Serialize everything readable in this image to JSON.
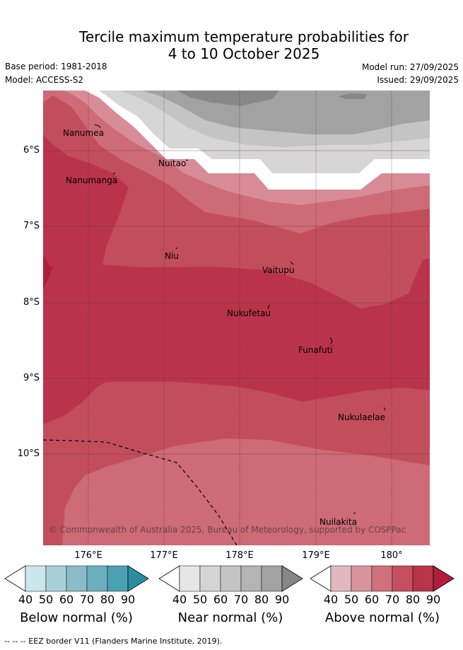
{
  "title_line1": "Tercile maximum temperature probabilities for",
  "title_line2": "4 to 10 October 2025",
  "meta": {
    "base_period": "Base period: 1981-2018",
    "model": "Model: ACCESS-S2",
    "model_run": "Model run: 27/09/2025",
    "issued": "Issued: 29/09/2025"
  },
  "lat_labels": [
    "6°S",
    "7°S",
    "8°S",
    "9°S",
    "10°S"
  ],
  "lon_labels": [
    "176°E",
    "177°E",
    "178°E",
    "179°E",
    "180°"
  ],
  "places": [
    "Nanumea",
    "Nanumanga",
    "Nuitao",
    "Niu",
    "Vaitupu",
    "Nukufetau",
    "Funafuti",
    "Nukulaelae",
    "Nuilakita"
  ],
  "copyright": "© Commonwealth of Australia 2025, Bureau of Meteorology, supported by COSPPac",
  "colorbars": [
    {
      "label": "Below normal (%)",
      "ticks": [
        "40",
        "50",
        "60",
        "70",
        "80",
        "90"
      ],
      "colors": [
        "#ffffff",
        "#cde6ed",
        "#a9d0d8",
        "#8cbcc9",
        "#6bafbf",
        "#4aa1b2",
        "#2a8ea3"
      ]
    },
    {
      "label": "Near normal (%)",
      "ticks": [
        "40",
        "50",
        "60",
        "70",
        "80",
        "90"
      ],
      "colors": [
        "#ffffff",
        "#e6e6e6",
        "#d4d4d4",
        "#c4c4c4",
        "#b4b4b4",
        "#a2a2a2",
        "#878787"
      ]
    },
    {
      "label": "Above normal (%)",
      "ticks": [
        "40",
        "50",
        "60",
        "70",
        "80",
        "90"
      ],
      "colors": [
        "#ffffff",
        "#e2b8c0",
        "#d8949d",
        "#cf727e",
        "#c4505f",
        "#b93448",
        "#b21d3b"
      ]
    }
  ],
  "footer": "--  --  -- EEZ border V11 (Flanders Marine Institute, 2019)."
}
